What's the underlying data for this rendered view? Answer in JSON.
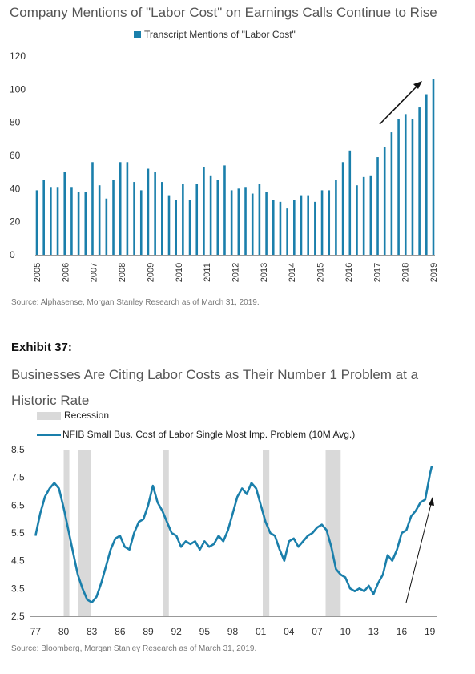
{
  "chart_data": [
    {
      "type": "bar",
      "title": "Company Mentions of \"Labor Cost\" on Earnings Calls Continue to Rise",
      "series": [
        {
          "name": "Transcript Mentions of \"Labor Cost\"",
          "color": "#1a7fab"
        }
      ],
      "ylim": [
        0,
        120
      ],
      "yticks": [
        0,
        20,
        40,
        60,
        80,
        100,
        120
      ],
      "xticks": [
        "2005",
        "2006",
        "2007",
        "2008",
        "2009",
        "2010",
        "2011",
        "2012",
        "2013",
        "2014",
        "2015",
        "2016",
        "2017",
        "2018",
        "2019"
      ],
      "x_start": 2005,
      "x_end": 2019,
      "values": [
        39,
        45,
        41,
        41,
        50,
        41,
        38,
        38,
        56,
        42,
        34,
        45,
        56,
        56,
        44,
        39,
        52,
        50,
        44,
        36,
        33,
        43,
        33,
        43,
        53,
        48,
        45,
        54,
        39,
        40,
        41,
        37,
        43,
        38,
        33,
        32,
        28,
        33,
        36,
        36,
        32,
        39,
        39,
        45,
        56,
        63,
        42,
        47,
        48,
        59,
        65,
        74,
        82,
        85,
        82,
        89,
        97,
        106
      ],
      "source": "Source: Alphasense, Morgan Stanley Research as of March 31, 2019."
    },
    {
      "type": "line",
      "exhibit": "Exhibit 37:",
      "title": "Businesses Are Citing Labor Costs as Their Number 1 Problem at a Historic Rate",
      "legend": [
        {
          "name": "Recession",
          "kind": "shade",
          "color": "#d9d9d9"
        },
        {
          "name": "NFIB Small Bus. Cost of Labor Single Most Imp. Problem (10M Avg.)",
          "kind": "line",
          "color": "#1a7fab"
        }
      ],
      "ylim": [
        2.5,
        8.5
      ],
      "yticks": [
        2.5,
        3.5,
        4.5,
        5.5,
        6.5,
        7.5,
        8.5
      ],
      "xlim": [
        1976.8,
        2019.8
      ],
      "xticks": [
        {
          "v": 1977,
          "label": "77"
        },
        {
          "v": 1980,
          "label": "80"
        },
        {
          "v": 1983,
          "label": "83"
        },
        {
          "v": 1986,
          "label": "86"
        },
        {
          "v": 1989,
          "label": "89"
        },
        {
          "v": 1992,
          "label": "92"
        },
        {
          "v": 1995,
          "label": "95"
        },
        {
          "v": 1998,
          "label": "98"
        },
        {
          "v": 2001,
          "label": "01"
        },
        {
          "v": 2004,
          "label": "04"
        },
        {
          "v": 2007,
          "label": "07"
        },
        {
          "v": 2010,
          "label": "10"
        },
        {
          "v": 2013,
          "label": "13"
        },
        {
          "v": 2016,
          "label": "16"
        },
        {
          "v": 2019,
          "label": "19"
        }
      ],
      "recessions": [
        [
          1980.0,
          1980.6
        ],
        [
          1981.5,
          1982.9
        ],
        [
          1990.6,
          1991.2
        ],
        [
          2001.2,
          2001.9
        ],
        [
          2007.9,
          2009.5
        ]
      ],
      "x": [
        1977.0,
        1977.5,
        1978.0,
        1978.5,
        1979.0,
        1979.5,
        1980.0,
        1980.5,
        1981.0,
        1981.5,
        1982.0,
        1982.5,
        1983.0,
        1983.5,
        1984.0,
        1984.5,
        1985.0,
        1985.5,
        1986.0,
        1986.5,
        1987.0,
        1987.5,
        1988.0,
        1988.5,
        1989.0,
        1989.5,
        1990.0,
        1990.5,
        1991.0,
        1991.5,
        1992.0,
        1992.5,
        1993.0,
        1993.5,
        1994.0,
        1994.5,
        1995.0,
        1995.5,
        1996.0,
        1996.5,
        1997.0,
        1997.5,
        1998.0,
        1998.5,
        1999.0,
        1999.5,
        2000.0,
        2000.5,
        2001.0,
        2001.5,
        2002.0,
        2002.5,
        2003.0,
        2003.5,
        2004.0,
        2004.5,
        2005.0,
        2005.5,
        2006.0,
        2006.5,
        2007.0,
        2007.5,
        2008.0,
        2008.5,
        2009.0,
        2009.5,
        2010.0,
        2010.5,
        2011.0,
        2011.5,
        2012.0,
        2012.5,
        2013.0,
        2013.5,
        2014.0,
        2014.5,
        2015.0,
        2015.5,
        2016.0,
        2016.5,
        2017.0,
        2017.5,
        2018.0,
        2018.5,
        2019.0,
        2019.2
      ],
      "y": [
        5.4,
        6.2,
        6.8,
        7.1,
        7.3,
        7.1,
        6.4,
        5.6,
        4.8,
        4.0,
        3.5,
        3.1,
        3.0,
        3.2,
        3.7,
        4.3,
        4.9,
        5.3,
        5.4,
        5.0,
        4.9,
        5.5,
        5.9,
        6.0,
        6.5,
        7.2,
        6.6,
        6.3,
        5.9,
        5.5,
        5.4,
        5.0,
        5.2,
        5.1,
        5.2,
        4.9,
        5.2,
        5.0,
        5.1,
        5.4,
        5.2,
        5.6,
        6.2,
        6.8,
        7.1,
        6.9,
        7.3,
        7.1,
        6.5,
        5.9,
        5.5,
        5.4,
        4.9,
        4.5,
        5.2,
        5.3,
        5.0,
        5.2,
        5.4,
        5.5,
        5.7,
        5.8,
        5.6,
        5.0,
        4.2,
        4.0,
        3.9,
        3.5,
        3.4,
        3.5,
        3.4,
        3.6,
        3.3,
        3.7,
        4.0,
        4.7,
        4.5,
        4.9,
        5.5,
        5.6,
        6.1,
        6.3,
        6.6,
        6.7,
        7.6,
        7.9
      ],
      "source": "Source: Bloomberg, Morgan Stanley Research as of March 31, 2019."
    }
  ]
}
